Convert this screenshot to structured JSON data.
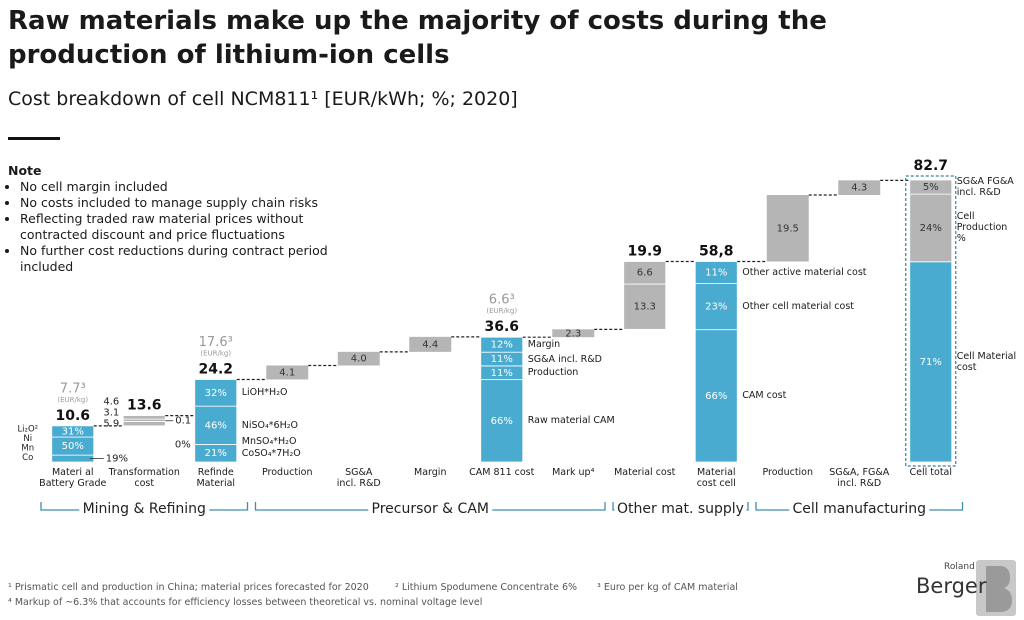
{
  "chart_data": {
    "type": "waterfall",
    "title": "Raw materials make up the majority of costs during the production of lithium-ion cells",
    "subtitle": "Cost breakdown of cell NCM811¹ [EUR/kWh; %; 2020]",
    "note_title": "Note",
    "notes": [
      "No cell margin included",
      "No costs included to manage supply chain risks",
      "Reflecting traded raw material prices without contracted discount and price fluctuations",
      "No further cost reductions during contract period included"
    ],
    "groups": [
      {
        "label": "Mining & Refining",
        "bars": [
          {
            "category": "Materi al\nBattery Grade",
            "kind": "total",
            "value": 10.6,
            "color": "#4aabd0",
            "price": "7.7³",
            "price_unit": "(EUR/kg)",
            "left_labels": [
              "Li₂O²",
              "Ni",
              "Mn",
              "Co"
            ],
            "segments": {
              "values": [
                19,
                50,
                31
              ],
              "value_labels": [
                "19%",
                "50%",
                "31%"
              ]
            }
          },
          {
            "category": "Transformation\ncost",
            "kind": "level",
            "value": 13.6,
            "color": "#b5b5b5",
            "side_note": 0.1,
            "segments": {
              "values": [
                5.9,
                3.1,
                4.6
              ]
            }
          },
          {
            "category": "Refinde\nMaterial",
            "kind": "total",
            "value": 24.2,
            "color": "#4aabd0",
            "price": "17.6³",
            "price_unit": "(EUR/kg)",
            "segments": {
              "values": [
                21,
                0,
                46,
                32
              ],
              "value_labels": [
                "21%",
                "0%",
                "46%",
                "32%"
              ],
              "names": [
                "CoSO₄*7H₂O",
                "MnSO₄*H₂O",
                "NiSO₄*6H₂O",
                "LiOH*H₂O"
              ]
            }
          }
        ]
      },
      {
        "label": "Precursor & CAM",
        "bars": [
          {
            "category": "Production",
            "kind": "step",
            "value": 4.1,
            "color": "#b5b5b5"
          },
          {
            "category": "SG&A\nincl. R&D",
            "kind": "step",
            "value": 4.0,
            "value_label": "4.0",
            "color": "#b5b5b5"
          },
          {
            "category": "Margin",
            "kind": "step",
            "value": 4.4,
            "color": "#b5b5b5"
          },
          {
            "category": "CAM 811 cost",
            "kind": "total",
            "value": 36.6,
            "color": "#4aabd0",
            "price": "6.6³",
            "price_unit": "(EUR/kg)",
            "segments": {
              "values": [
                66,
                11,
                11,
                12
              ],
              "value_labels": [
                "66%",
                "11%",
                "11%",
                "12%"
              ],
              "names": [
                "Raw material CAM",
                "Production",
                "SG&A incl. R&D",
                "Margin"
              ]
            }
          },
          {
            "category": "Mark up⁴",
            "kind": "step",
            "value": 2.3,
            "color": "#b5b5b5"
          }
        ]
      },
      {
        "label": "Other mat. supply",
        "bars": [
          {
            "category": "Material cost",
            "kind": "step",
            "value": 19.9,
            "color": "#b5b5b5",
            "segments": {
              "values": [
                13.3,
                6.6
              ]
            }
          },
          {
            "category": "Material\ncost cell",
            "kind": "total",
            "value": 58.8,
            "value_label": "58,8",
            "color": "#4aabd0",
            "segments": {
              "values": [
                66,
                23,
                11
              ],
              "value_labels": [
                "66%",
                "23%",
                "11%"
              ],
              "names": [
                "CAM cost",
                "Other cell material cost",
                "Other active material cost"
              ]
            }
          }
        ]
      },
      {
        "label": "Cell manufacturing",
        "bars": [
          {
            "category": "Production",
            "kind": "step",
            "value": 19.5,
            "color": "#b5b5b5"
          },
          {
            "category": "SG&A, FG&A\nincl. R&D",
            "kind": "step",
            "value": 4.3,
            "color": "#b5b5b5"
          },
          {
            "category": "Cell total",
            "kind": "total",
            "value": 82.7,
            "color": "#4aabd0",
            "highlight": true,
            "segments": {
              "values": [
                71,
                24,
                5
              ],
              "value_labels": [
                "71%",
                "24%",
                "5%"
              ],
              "names": [
                "Cell Material cost",
                "Cell Production %",
                "SG&A FG&A incl. R&D"
              ],
              "colors": [
                "#4aabd0",
                "#b5b5b5",
                "#b5b5b5"
              ]
            }
          }
        ]
      }
    ],
    "footnotes": [
      "¹ Prismatic cell and production in China; material prices forecasted for 2020",
      "² Lithium Spodumene Concentrate 6%",
      "³ Euro per kg of CAM material",
      "⁴ Markup of ~6.3% that accounts for efficiency losses between theoretical vs. nominal voltage level"
    ]
  },
  "logo": {
    "small": "Roland",
    "large": "Berger"
  }
}
